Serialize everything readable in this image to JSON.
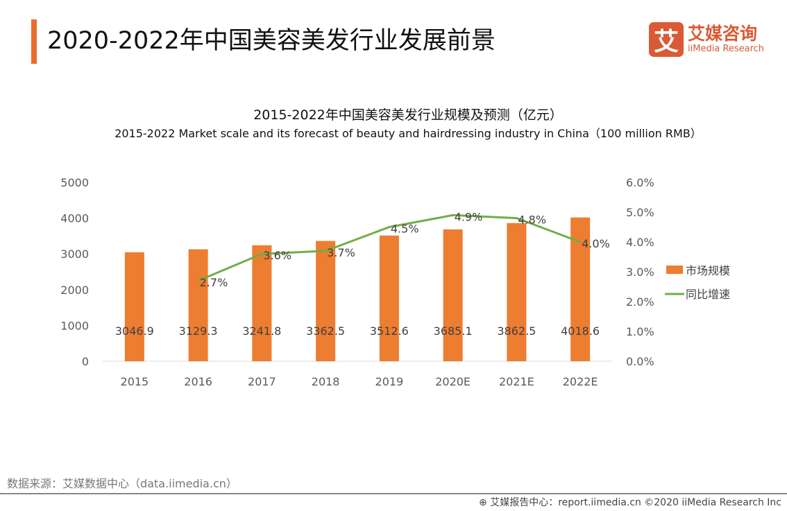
{
  "header": {
    "title": "2020-2022年中国美容美发行业发展前景"
  },
  "logo": {
    "mark": "艾",
    "cn": "艾媒咨询",
    "en": "iiMedia Research"
  },
  "source": "数据来源：艾媒数据中心（data.iimedia.cn）",
  "footer": "艾媒报告中心：report.iimedia.cn  ©2020  iiMedia Research  Inc",
  "colors": {
    "bar": "#ed7d31",
    "line": "#70ad47",
    "accent": "#ec6c2c"
  },
  "chart_data": {
    "type": "bar+line",
    "title": "2015-2022年中国美容美发行业规模及预测（亿元）",
    "subtitle": "2015-2022 Market scale and its forecast of beauty and hairdressing industry in China（100 million RMB）",
    "categories": [
      "2015",
      "2016",
      "2017",
      "2018",
      "2019",
      "2020E",
      "2021E",
      "2022E"
    ],
    "series": [
      {
        "name": "市场规模",
        "type": "bar",
        "axis": "left",
        "values": [
          3046.9,
          3129.3,
          3241.8,
          3362.5,
          3512.6,
          3685.1,
          3862.5,
          4018.6
        ],
        "labels": [
          "3046.9",
          "3129.3",
          "3241.8",
          "3362.5",
          "3512.6",
          "3685.1",
          "3862.5",
          "4018.6"
        ]
      },
      {
        "name": "同比增速",
        "type": "line",
        "axis": "right",
        "values": [
          null,
          2.7,
          3.6,
          3.7,
          4.5,
          4.9,
          4.8,
          4.0
        ],
        "labels": [
          "",
          "2.7%",
          "3.6%",
          "3.7%",
          "4.5%",
          "4.9%",
          "4.8%",
          "4.0%"
        ]
      }
    ],
    "left_axis": {
      "min": 0,
      "max": 5000,
      "ticks": [
        "0",
        "1000",
        "2000",
        "3000",
        "4000",
        "5000"
      ]
    },
    "right_axis": {
      "min": 0,
      "max": 6,
      "ticks": [
        "0.0%",
        "1.0%",
        "2.0%",
        "3.0%",
        "4.0%",
        "5.0%",
        "6.0%"
      ]
    },
    "legend": "right"
  }
}
